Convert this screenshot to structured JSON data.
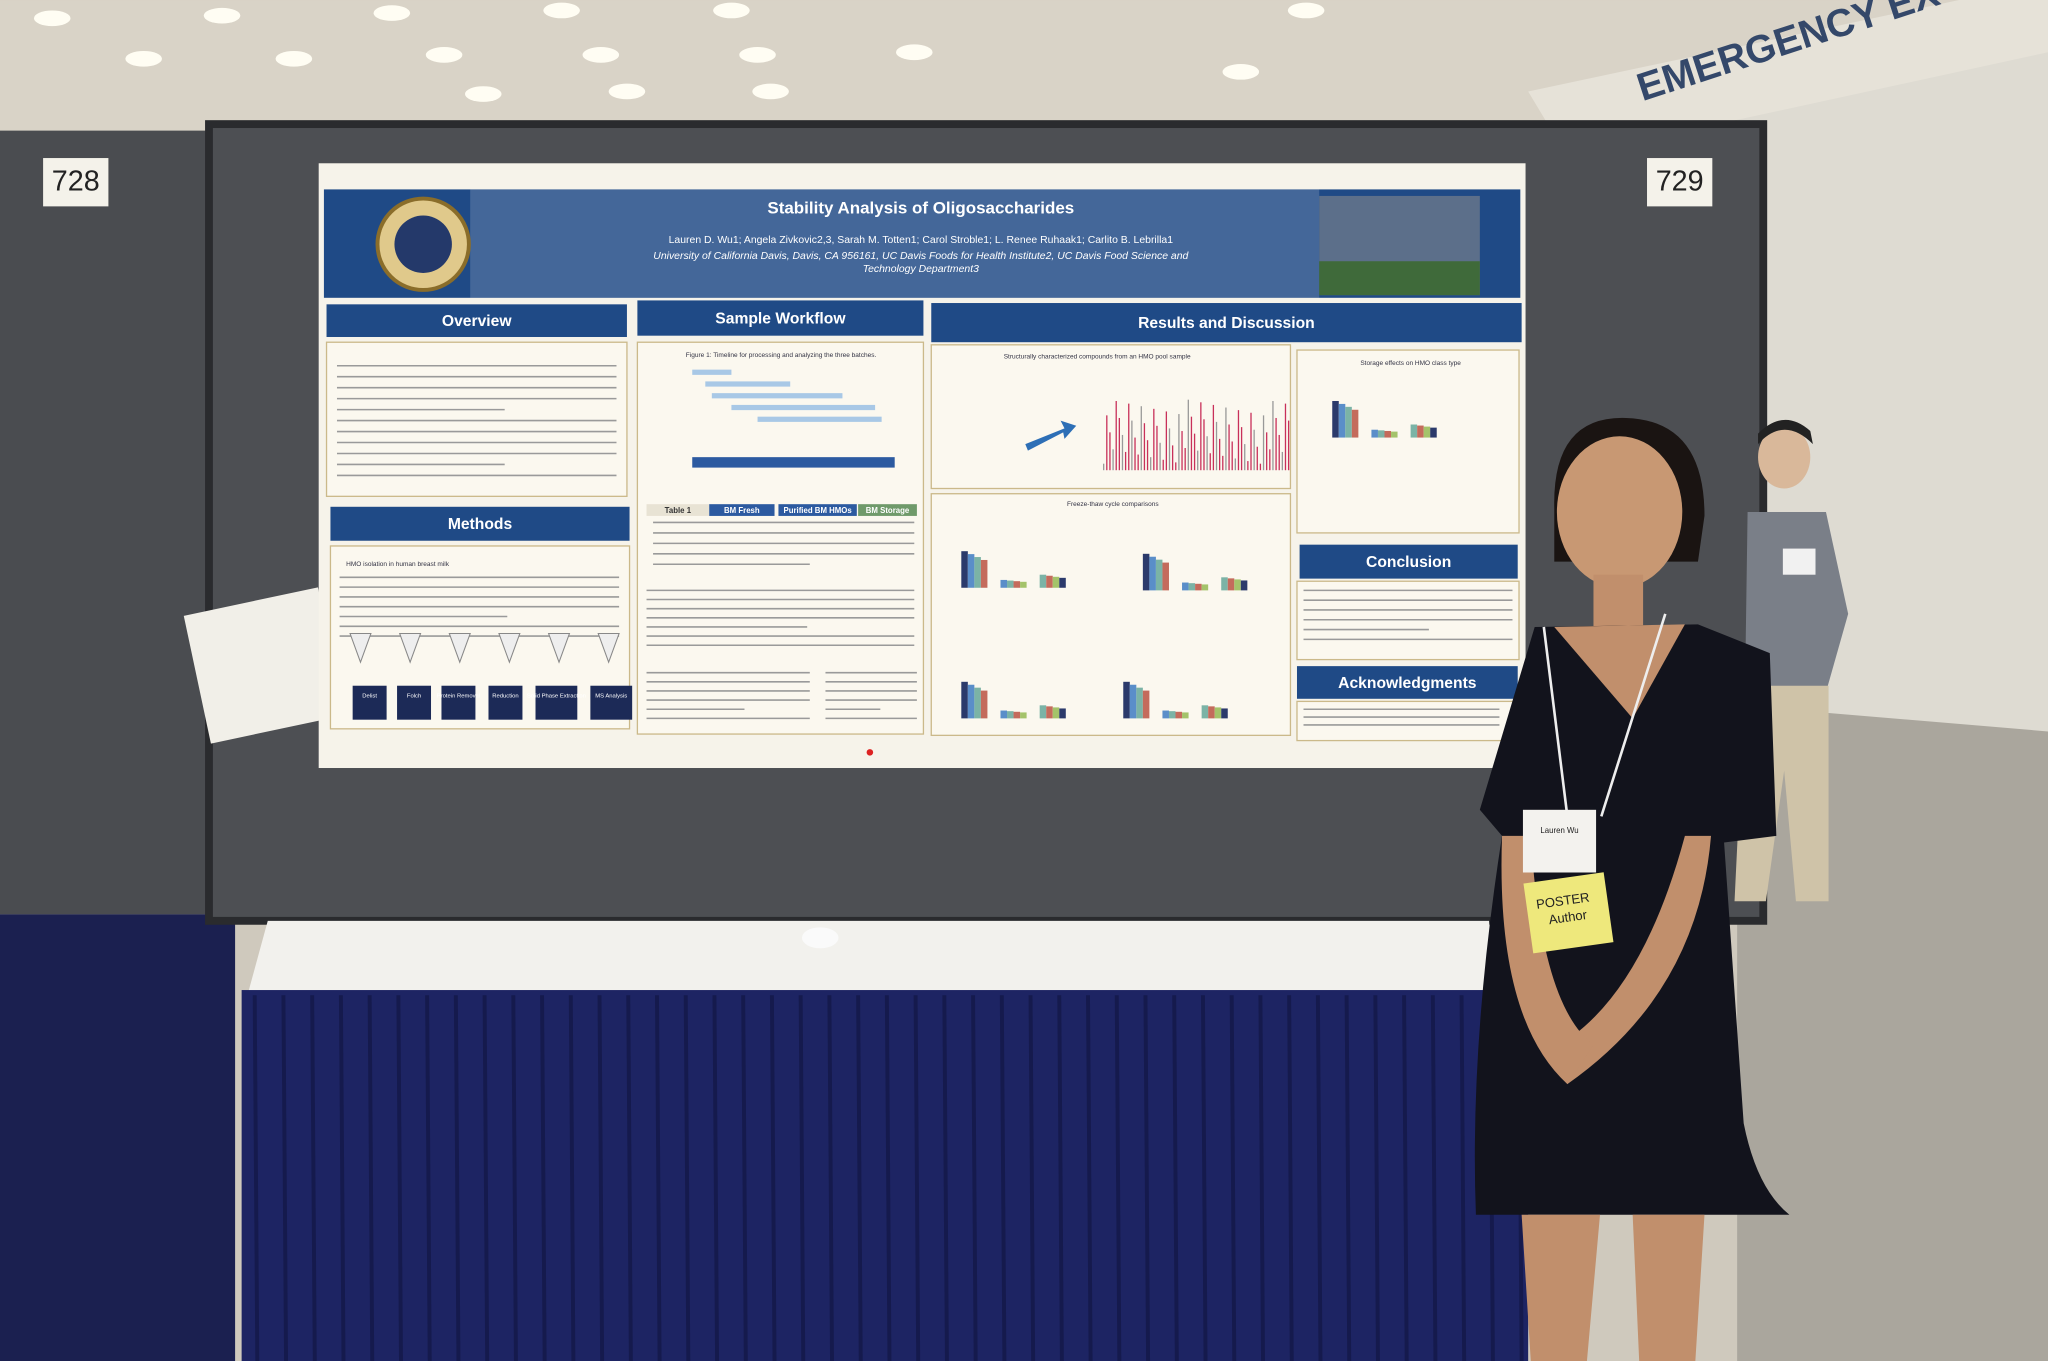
{
  "scene": {
    "booth_numbers": [
      "728",
      "729"
    ],
    "sign": "EMERGENCY EX"
  },
  "poster": {
    "title": "Stability Analysis of Oligosaccharides",
    "authors": "Lauren D. Wu1; Angela Zivkovic2,3, Sarah M. Totten1; Carol Stroble1; L. Renee Ruhaak1; Carlito B. Lebrilla1",
    "affiliation": [
      "University of California Davis, Davis, CA 956161, UC Davis Foods for Health Institute2, UC Davis Food Science and",
      "Technology Department3"
    ],
    "sections": [
      "Overview",
      "Sample Workflow",
      "Results and Discussion",
      "Methods",
      "Conclusion",
      "Acknowledgments"
    ],
    "figures": [
      "Figure 1: Timeline for processing and analyzing the three batches.",
      "Structurally characterized compounds from an HMO pool sample",
      "Storage effects on HMO class type",
      "Freeze-thaw cycle comparisons",
      "HMO isolation in human breast milk"
    ],
    "table_headers": [
      "Table 1",
      "BM Fresh",
      "Purified BM HMOs",
      "BM Storage"
    ],
    "steps": [
      "Delist",
      "Folch",
      "Protein Removal",
      "Reduction",
      "Solid Phase Extraction",
      "MS Analysis"
    ]
  },
  "badge": {
    "name": "Lauren Wu",
    "label": [
      "POSTER",
      "Author"
    ]
  }
}
